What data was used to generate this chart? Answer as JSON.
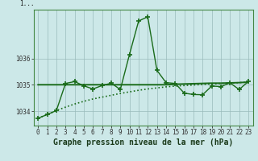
{
  "title": "Graphe pression niveau de la mer (hPa)",
  "background_color": "#cce8e8",
  "plot_bg_color": "#cce8e8",
  "grid_color": "#99bbbb",
  "line_color": "#1a6b1a",
  "x": [
    0,
    1,
    2,
    3,
    4,
    5,
    6,
    7,
    8,
    9,
    10,
    11,
    12,
    13,
    14,
    15,
    16,
    17,
    18,
    19,
    20,
    21,
    22,
    23
  ],
  "y_jagged": [
    1033.73,
    1033.87,
    1034.02,
    1035.05,
    1035.12,
    1034.96,
    1034.84,
    1034.97,
    1035.06,
    1034.82,
    1036.15,
    1037.42,
    1037.58,
    1035.55,
    1035.08,
    1035.05,
    1034.68,
    1034.63,
    1034.62,
    1034.95,
    1034.93,
    1035.07,
    1034.82,
    1035.12
  ],
  "y_flat": [
    1035.0,
    1035.0,
    1035.0,
    1035.0,
    1035.0,
    1035.0,
    1035.0,
    1035.0,
    1035.0,
    1035.0,
    1035.0,
    1035.0,
    1035.0,
    1035.0,
    1035.0,
    1035.02,
    1035.03,
    1035.04,
    1035.05,
    1035.06,
    1035.06,
    1035.07,
    1035.08,
    1035.1
  ],
  "y_dotted": [
    1033.73,
    1033.87,
    1034.02,
    1034.15,
    1034.27,
    1034.37,
    1034.46,
    1034.53,
    1034.6,
    1034.67,
    1034.73,
    1034.79,
    1034.84,
    1034.88,
    1034.92,
    1034.95,
    1034.97,
    1034.99,
    1035.01,
    1035.03,
    1035.05,
    1035.06,
    1035.08,
    1035.1
  ],
  "ylim": [
    1033.45,
    1037.85
  ],
  "yticks": [
    1034,
    1035,
    1036
  ],
  "ytick_labels": [
    "1034",
    "1035",
    "1036"
  ],
  "xticks": [
    0,
    1,
    2,
    3,
    4,
    5,
    6,
    7,
    8,
    9,
    10,
    11,
    12,
    13,
    14,
    15,
    16,
    17,
    18,
    19,
    20,
    21,
    22,
    23
  ],
  "tick_fontsize": 5.5,
  "title_fontsize": 7.0,
  "top_label": "1..."
}
